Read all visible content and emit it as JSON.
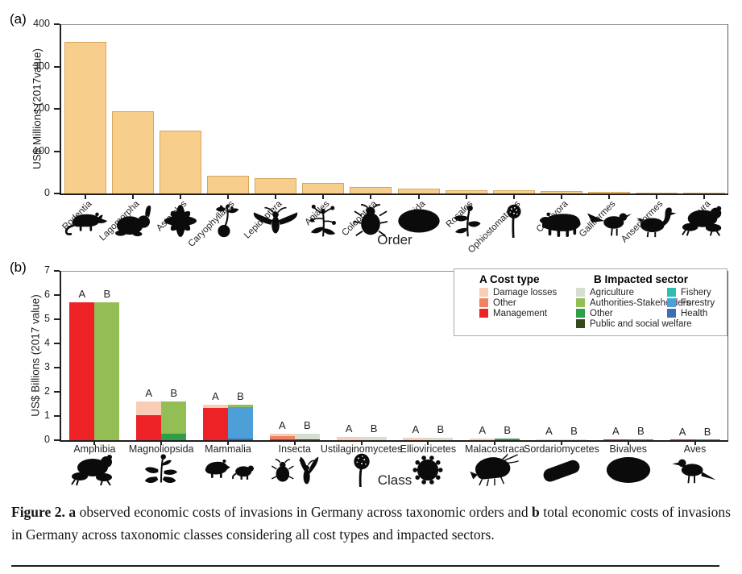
{
  "panels": {
    "a_label": "(a)",
    "b_label": "(b)"
  },
  "chart_data": [
    {
      "type": "bar",
      "panel": "a",
      "xlabel": "Order",
      "ylabel": "US$ Millions (2017value)",
      "ylim": [
        0,
        400
      ],
      "yticks": [
        0,
        100,
        200,
        300,
        400
      ],
      "bar_color": "#F8CE8D",
      "bar_edge_color": "#D9A55B",
      "categories": [
        "Rodentia",
        "Lagomorpha",
        "Asterales",
        "Caryophyllales",
        "Lepidoptera",
        "Apiales",
        "Coleoptera",
        "Myida",
        "Rosales",
        "Ophiostomatales",
        "Carnivora",
        "Galliformes",
        "Anseriformes",
        "Anura"
      ],
      "icons": [
        "rodent-icon",
        "rabbit-icon",
        "aster-flower-icon",
        "caryophyllales-plant-icon",
        "moth-icon",
        "apiales-plant-icon",
        "beetle-icon",
        "clam-icon",
        "rosales-plant-icon",
        "ophiostoma-fungus-icon",
        "carnivore-icon",
        "galliform-bird-icon",
        "goose-icon",
        "frog-icon"
      ],
      "values": [
        358,
        194,
        148,
        41,
        36,
        25,
        15,
        11,
        8,
        7,
        6,
        3,
        2,
        1
      ]
    },
    {
      "type": "stacked-bar-pairs",
      "panel": "b",
      "xlabel": "Class",
      "ylabel": "US$ Billions (2017 value)",
      "ylim": [
        0,
        7
      ],
      "yticks": [
        0,
        1,
        2,
        3,
        4,
        5,
        6,
        7
      ],
      "pair_letters": [
        "A",
        "B"
      ],
      "categories": [
        "Amphibia",
        "Magnoliopsida",
        "Mammalia",
        "Insecta",
        "Ustilaginomycetes",
        "Ellioviricetes",
        "Malacostraca",
        "Sordariomycetes",
        "Bivalves",
        "Aves"
      ],
      "icons": [
        "frog-icon",
        "magnoliopsida-plant-icon",
        "mammals-icon",
        "insects-icon",
        "ustilago-fungus-icon",
        "virus-icon",
        "shrimp-icon",
        "bacillus-icon",
        "bivalve-icon",
        "bird-icon"
      ],
      "cost_palette": {
        "Damage losses": "#F9CDB5",
        "Other": "#F08262",
        "Management": "#EC2227"
      },
      "sector_palette": {
        "Agriculture": "#D6DED0",
        "Authorities-Stakeholders": "#93BE56",
        "Other": "#2F9E48",
        "Public and social welfare": "#35491F",
        "Fishery": "#2CBFAE",
        "Forestry": "#4D9FD8",
        "Health": "#3C6DB5"
      },
      "bars_cost": [
        [
          [
            "Management",
            5.7
          ]
        ],
        [
          [
            "Management",
            1.02
          ],
          [
            "Damage losses",
            0.58
          ]
        ],
        [
          [
            "Management",
            1.33
          ],
          [
            "Damage losses",
            0.14
          ]
        ],
        [
          [
            "Management",
            0.02
          ],
          [
            "Other",
            0.16
          ],
          [
            "Damage losses",
            0.1
          ]
        ],
        [
          [
            "Damage losses",
            0.14
          ]
        ],
        [
          [
            "Damage losses",
            0.1
          ]
        ],
        [
          [
            "Damage losses",
            0.07
          ]
        ],
        [
          [
            "Damage losses",
            0.05
          ]
        ],
        [
          [
            "Management",
            0.02
          ]
        ],
        [
          [
            "Management",
            0.01
          ]
        ]
      ],
      "bars_sector": [
        [
          [
            "Authorities-Stakeholders",
            5.7
          ]
        ],
        [
          [
            "Other",
            0.27
          ],
          [
            "Authorities-Stakeholders",
            1.33
          ]
        ],
        [
          [
            "Health",
            0.06
          ],
          [
            "Forestry",
            1.3
          ],
          [
            "Authorities-Stakeholders",
            0.11
          ]
        ],
        [
          [
            "Public and social welfare",
            0.04
          ],
          [
            "Agriculture",
            0.24
          ]
        ],
        [
          [
            "Agriculture",
            0.14
          ]
        ],
        [
          [
            "Agriculture",
            0.1
          ]
        ],
        [
          [
            "Other",
            0.07
          ]
        ],
        [
          [
            "Agriculture",
            0.05
          ]
        ],
        [
          [
            "Other",
            0.02
          ]
        ],
        [
          [
            "Other",
            0.01
          ]
        ]
      ],
      "legend": {
        "cost_title": "A Cost type",
        "sector_title": "B Impacted sector",
        "cost_items": [
          "Damage losses",
          "Other",
          "Management"
        ],
        "sector_items_col1": [
          "Agriculture",
          "Authorities-Stakeholders",
          "Other",
          "Public and social welfare"
        ],
        "sector_items_col2": [
          "Fishery",
          "Forestry",
          "Health"
        ]
      }
    }
  ],
  "caption": {
    "figure_label": "Figure 2. ",
    "bold_a": "a",
    "segment_a": " observed economic costs of invasions in Germany across taxonomic orders and ",
    "bold_b": "b",
    "segment_b": " total economic costs of invasions in Germany across taxonomic classes considering all cost types and impacted sectors."
  }
}
